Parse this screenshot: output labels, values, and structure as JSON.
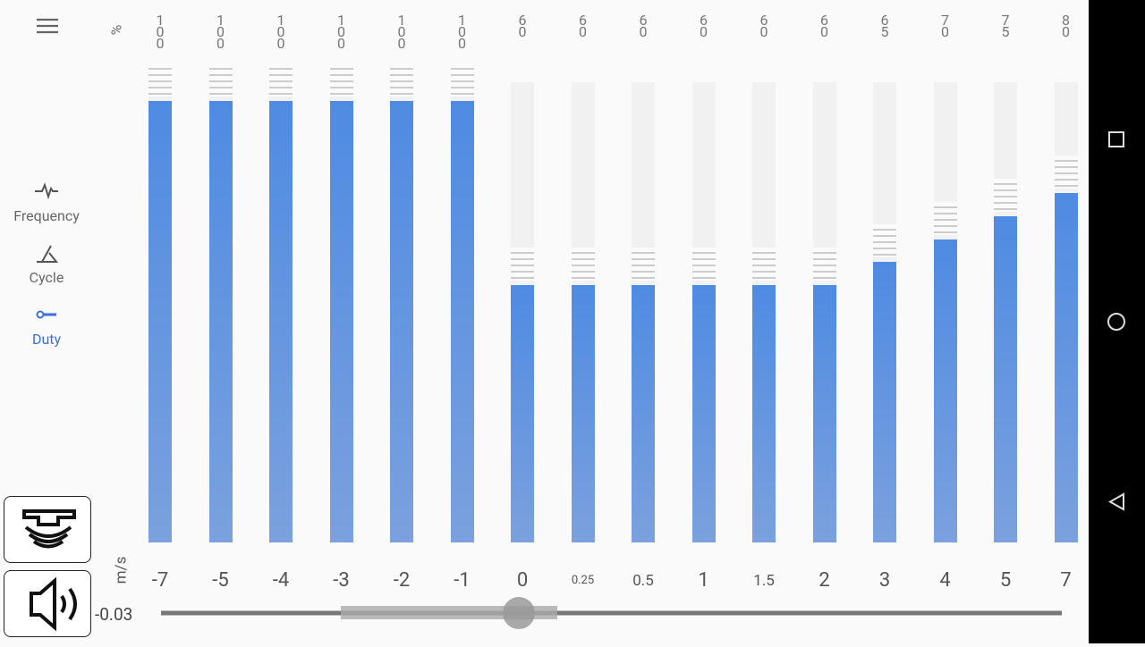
{
  "menu": {
    "items": [
      {
        "label": "Frequency",
        "active": false
      },
      {
        "label": "Cycle",
        "active": false
      },
      {
        "label": "Duty",
        "active": true
      }
    ]
  },
  "chart": {
    "value_unit": "%",
    "speed_unit": "m/s",
    "columns": [
      {
        "speed": "-7",
        "duty": 100
      },
      {
        "speed": "-5",
        "duty": 100
      },
      {
        "speed": "-4",
        "duty": 100
      },
      {
        "speed": "-3",
        "duty": 100
      },
      {
        "speed": "-2",
        "duty": 100
      },
      {
        "speed": "-1",
        "duty": 100
      },
      {
        "speed": "0",
        "duty": 60
      },
      {
        "speed": "0.25",
        "duty": 60
      },
      {
        "speed": "0.5",
        "duty": 60
      },
      {
        "speed": "1",
        "duty": 60
      },
      {
        "speed": "1.5",
        "duty": 60
      },
      {
        "speed": "2",
        "duty": 60
      },
      {
        "speed": "3",
        "duty": 65
      },
      {
        "speed": "4",
        "duty": 70
      },
      {
        "speed": "5",
        "duty": 75
      },
      {
        "speed": "7",
        "duty": 80
      }
    ]
  },
  "slider": {
    "value": "-0.03"
  }
}
